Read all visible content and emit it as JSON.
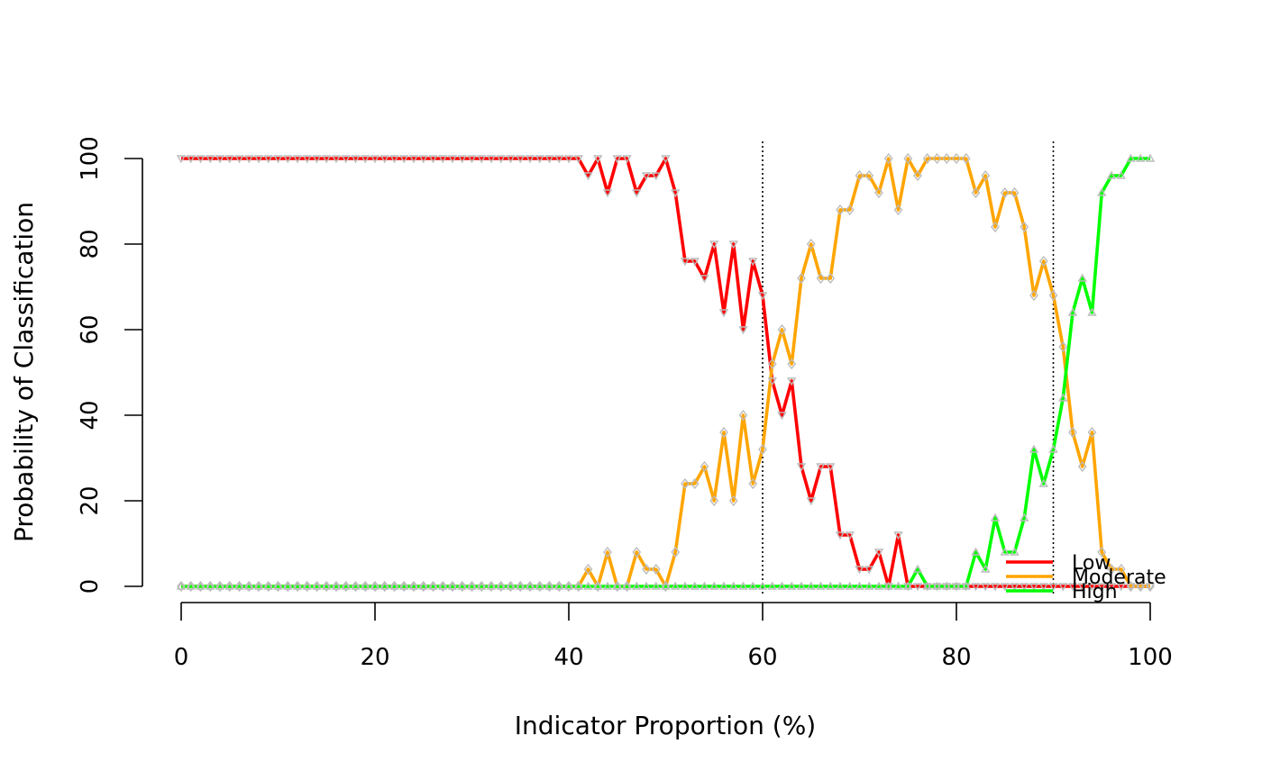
{
  "chart_data": {
    "type": "line",
    "title": "",
    "xlabel": "Indicator Proportion (%)",
    "ylabel": "Probability of Classification",
    "xlim": [
      0,
      100
    ],
    "ylim": [
      0,
      100
    ],
    "xticks": [
      "0",
      "20",
      "40",
      "60",
      "80",
      "100"
    ],
    "yticks": [
      "0",
      "20",
      "40",
      "60",
      "80",
      "100"
    ],
    "grid": false,
    "reference_lines_x": [
      60,
      90
    ],
    "legend": {
      "position": "bottom-right",
      "entries": [
        "Low",
        "Moderate",
        "High"
      ]
    },
    "marker_color": "#bbbbbb",
    "series": [
      {
        "name": "Low",
        "color": "#ff0000",
        "marker": "triangle-down",
        "values": [
          100,
          100,
          100,
          100,
          100,
          100,
          100,
          100,
          100,
          100,
          100,
          100,
          100,
          100,
          100,
          100,
          100,
          100,
          100,
          100,
          100,
          100,
          100,
          100,
          100,
          100,
          100,
          100,
          100,
          100,
          100,
          100,
          100,
          100,
          100,
          100,
          100,
          100,
          100,
          100,
          100,
          100,
          96,
          100,
          92,
          100,
          100,
          92,
          96,
          96,
          100,
          92,
          76,
          76,
          72,
          80,
          64,
          80,
          60,
          76,
          68,
          48,
          40,
          48,
          28,
          20,
          28,
          28,
          12,
          12,
          4,
          4,
          8,
          0,
          12,
          0,
          0,
          0,
          0,
          0,
          0,
          0,
          0,
          0,
          0,
          0,
          0,
          0,
          0,
          0,
          0,
          0,
          0,
          0,
          0,
          0,
          0,
          0,
          0,
          0,
          0
        ]
      },
      {
        "name": "Moderate",
        "color": "#ffa500",
        "marker": "diamond",
        "values": [
          0,
          0,
          0,
          0,
          0,
          0,
          0,
          0,
          0,
          0,
          0,
          0,
          0,
          0,
          0,
          0,
          0,
          0,
          0,
          0,
          0,
          0,
          0,
          0,
          0,
          0,
          0,
          0,
          0,
          0,
          0,
          0,
          0,
          0,
          0,
          0,
          0,
          0,
          0,
          0,
          0,
          0,
          4,
          0,
          8,
          0,
          0,
          8,
          4,
          4,
          0,
          8,
          24,
          24,
          28,
          20,
          36,
          20,
          40,
          24,
          32,
          52,
          60,
          52,
          72,
          80,
          72,
          72,
          88,
          88,
          96,
          96,
          92,
          100,
          88,
          100,
          96,
          100,
          100,
          100,
          100,
          100,
          92,
          96,
          84,
          92,
          92,
          84,
          68,
          76,
          68,
          56,
          36,
          28,
          36,
          8,
          4,
          4,
          0,
          0,
          0
        ]
      },
      {
        "name": "High",
        "color": "#00ff00",
        "marker": "triangle-up",
        "values": [
          0,
          0,
          0,
          0,
          0,
          0,
          0,
          0,
          0,
          0,
          0,
          0,
          0,
          0,
          0,
          0,
          0,
          0,
          0,
          0,
          0,
          0,
          0,
          0,
          0,
          0,
          0,
          0,
          0,
          0,
          0,
          0,
          0,
          0,
          0,
          0,
          0,
          0,
          0,
          0,
          0,
          0,
          0,
          0,
          0,
          0,
          0,
          0,
          0,
          0,
          0,
          0,
          0,
          0,
          0,
          0,
          0,
          0,
          0,
          0,
          0,
          0,
          0,
          0,
          0,
          0,
          0,
          0,
          0,
          0,
          0,
          0,
          0,
          0,
          0,
          0,
          4,
          0,
          0,
          0,
          0,
          0,
          8,
          4,
          16,
          8,
          8,
          16,
          32,
          24,
          32,
          44,
          64,
          72,
          64,
          92,
          96,
          96,
          100,
          100,
          100
        ]
      }
    ]
  }
}
